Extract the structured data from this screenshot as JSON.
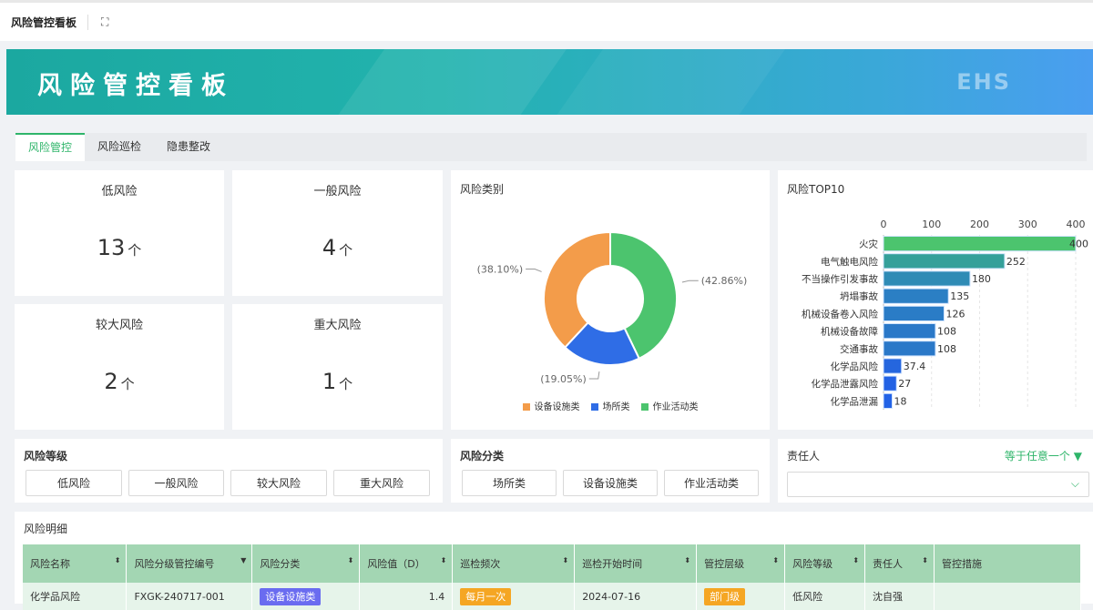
{
  "topbar": {
    "title": "风险管控看板",
    "expand_icon": "expand-icon"
  },
  "banner": {
    "title": "风险管控看板",
    "logo": "EHS"
  },
  "tabs": [
    "风险管控",
    "风险巡检",
    "隐患整改"
  ],
  "stats": [
    {
      "label": "低风险",
      "value": "13",
      "unit": "个"
    },
    {
      "label": "一般风险",
      "value": "4",
      "unit": "个"
    },
    {
      "label": "较大风险",
      "value": "2",
      "unit": "个"
    },
    {
      "label": "重大风险",
      "value": "1",
      "unit": "个"
    }
  ],
  "chart_data": [
    {
      "type": "pie",
      "title": "风险类别",
      "donut": true,
      "slices": [
        {
          "name": "作业活动类",
          "value": 42.86,
          "label": "(42.86%)",
          "color": "#4cc46e"
        },
        {
          "name": "场所类",
          "value": 19.05,
          "label": "(19.05%)",
          "color": "#2f6de6"
        },
        {
          "name": "设备设施类",
          "value": 38.1,
          "label": "(38.10%)",
          "color": "#f39c4a"
        }
      ],
      "legend": [
        "设备设施类",
        "场所类",
        "作业活动类"
      ],
      "legend_placement": "bottom"
    },
    {
      "type": "bar",
      "orientation": "horizontal",
      "title": "风险TOP10",
      "categories": [
        "火灾",
        "电气触电风险",
        "不当操作引发事故",
        "坍塌事故",
        "机械设备卷入风险",
        "机械设备故障",
        "交通事故",
        "化学品风险",
        "化学品泄露风险",
        "化学品泄漏"
      ],
      "values": [
        400,
        252,
        180,
        135,
        126,
        108,
        108,
        37.4,
        27,
        18
      ],
      "colors": [
        "#4cc46e",
        "#35a09a",
        "#2f8bb5",
        "#2b7fc4",
        "#2a7cc6",
        "#2a78c8",
        "#2a78c8",
        "#2566de",
        "#2362e4",
        "#2262e6"
      ],
      "xticks": [
        0,
        100,
        200,
        300,
        400
      ],
      "xlim": [
        0,
        400
      ],
      "value_labels": [
        "400",
        "252",
        "180",
        "135",
        "126",
        "108",
        "108",
        "37.4",
        "27",
        "18"
      ]
    }
  ],
  "filters": {
    "level": {
      "title": "风险等级",
      "options": [
        "低风险",
        "一般风险",
        "较大风险",
        "重大风险"
      ]
    },
    "category": {
      "title": "风险分类",
      "options": [
        "场所类",
        "设备设施类",
        "作业活动类"
      ]
    },
    "owner": {
      "title": "责任人",
      "mode": "等于任意一个",
      "value": ""
    }
  },
  "detail": {
    "title": "风险明细",
    "columns": [
      "风险名称",
      "风险分级管控编号",
      "风险分类",
      "风险值（D）",
      "巡检频次",
      "巡检开始时间",
      "管控层级",
      "风险等级",
      "责任人",
      "管控措施"
    ],
    "rows": [
      [
        "化学品风险",
        "FXGK-240717-001",
        "设备设施类",
        "1.4",
        "每月一次",
        "2024-07-16",
        "部门级",
        "低风险",
        "沈自强",
        ""
      ]
    ],
    "tag_colors": {
      "category": "#6a6cf0",
      "frequency": "#f5a623",
      "level": "#f5a623"
    }
  }
}
